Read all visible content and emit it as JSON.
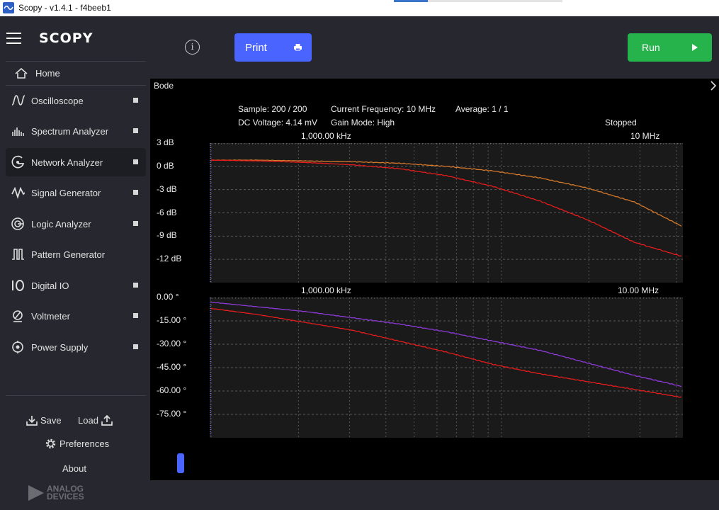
{
  "window": {
    "title": "Scopy - v1.4.1 - f4beeb1"
  },
  "sidebar": {
    "logo": "SCOPY",
    "home": "Home",
    "items": [
      {
        "label": "Oscilloscope",
        "icon": "oscilloscope-icon",
        "indicator": true
      },
      {
        "label": "Spectrum Analyzer",
        "icon": "spectrum-analyzer-icon",
        "indicator": true
      },
      {
        "label": "Network Analyzer",
        "icon": "network-analyzer-icon",
        "indicator": true,
        "active": true
      },
      {
        "label": "Signal Generator",
        "icon": "signal-generator-icon",
        "indicator": true
      },
      {
        "label": "Logic Analyzer",
        "icon": "logic-analyzer-icon",
        "indicator": true
      },
      {
        "label": "Pattern Generator",
        "icon": "pattern-generator-icon",
        "indicator": false
      },
      {
        "label": "Digital IO",
        "icon": "digital-io-icon",
        "indicator": true
      },
      {
        "label": "Voltmeter",
        "icon": "voltmeter-icon",
        "indicator": true
      },
      {
        "label": "Power Supply",
        "icon": "power-supply-icon",
        "indicator": true
      }
    ],
    "save": "Save",
    "load": "Load",
    "preferences": "Preferences",
    "about": "About",
    "brand_line1": "ANALOG",
    "brand_line2": "DEVICES"
  },
  "toolbar": {
    "print_label": "Print",
    "run_label": "Run"
  },
  "plot": {
    "title": "Bode",
    "info": {
      "sample": "Sample: 200 / 200",
      "current_frequency": "Current Frequency: 10 MHz",
      "average": "Average: 1 / 1",
      "dc_voltage": "DC Voltage: 4.14 mV",
      "gain_mode": "Gain Mode: High",
      "status": "Stopped"
    },
    "magnitude": {
      "x_ticks": [
        "1,000.00 kHz",
        "10 MHz"
      ],
      "y_ticks": [
        "3 dB",
        "0 dB",
        "-3 dB",
        "-6 dB",
        "-9 dB",
        "-12 dB"
      ],
      "y_values": [
        3,
        0,
        -3,
        -6,
        -9,
        -12
      ],
      "ylim": [
        3,
        -15
      ]
    },
    "phase": {
      "x_ticks": [
        "1,000.00 kHz",
        "10.00 MHz"
      ],
      "y_ticks": [
        "0.00 °",
        "-15.00 °",
        "-30.00 °",
        "-45.00 °",
        "-60.00 °",
        "-75.00 °"
      ],
      "y_values": [
        0,
        -15,
        -30,
        -45,
        -60,
        -75
      ],
      "ylim": [
        0,
        -90
      ]
    },
    "colors": {
      "mag_ref": "#d4782a",
      "mag_meas": "#e51c1c",
      "phase_ref": "#8d3bd8",
      "phase_meas": "#e51c1c",
      "grid": "#5a5a5a"
    }
  },
  "chart_data": [
    {
      "type": "line",
      "title": "",
      "xlabel": "",
      "ylabel": "",
      "ylim": [
        -15,
        3
      ],
      "x": [
        0,
        0.1,
        0.2,
        0.3,
        0.4,
        0.5,
        0.6,
        0.7,
        0.8,
        0.9,
        1.0
      ],
      "series": [
        {
          "values": [
            0.8,
            0.8,
            0.7,
            0.6,
            0.4,
            0.0,
            -0.6,
            -1.5,
            -2.8,
            -4.6,
            -7.7
          ]
        },
        {
          "values": [
            0.8,
            0.7,
            0.5,
            0.2,
            -0.3,
            -1.2,
            -2.6,
            -4.5,
            -6.9,
            -9.8,
            -11.6
          ]
        }
      ]
    },
    {
      "type": "line",
      "title": "",
      "xlabel": "",
      "ylabel": "",
      "ylim": [
        -90,
        0
      ],
      "x": [
        0,
        0.1,
        0.2,
        0.3,
        0.4,
        0.5,
        0.6,
        0.7,
        0.8,
        0.9,
        1.0
      ],
      "series": [
        {
          "values": [
            -3,
            -6,
            -9,
            -13,
            -17,
            -22,
            -28,
            -34,
            -42,
            -50,
            -57
          ]
        },
        {
          "values": [
            -7,
            -11,
            -16,
            -21,
            -28,
            -35,
            -43,
            -49,
            -54,
            -59,
            -64
          ]
        }
      ]
    }
  ]
}
